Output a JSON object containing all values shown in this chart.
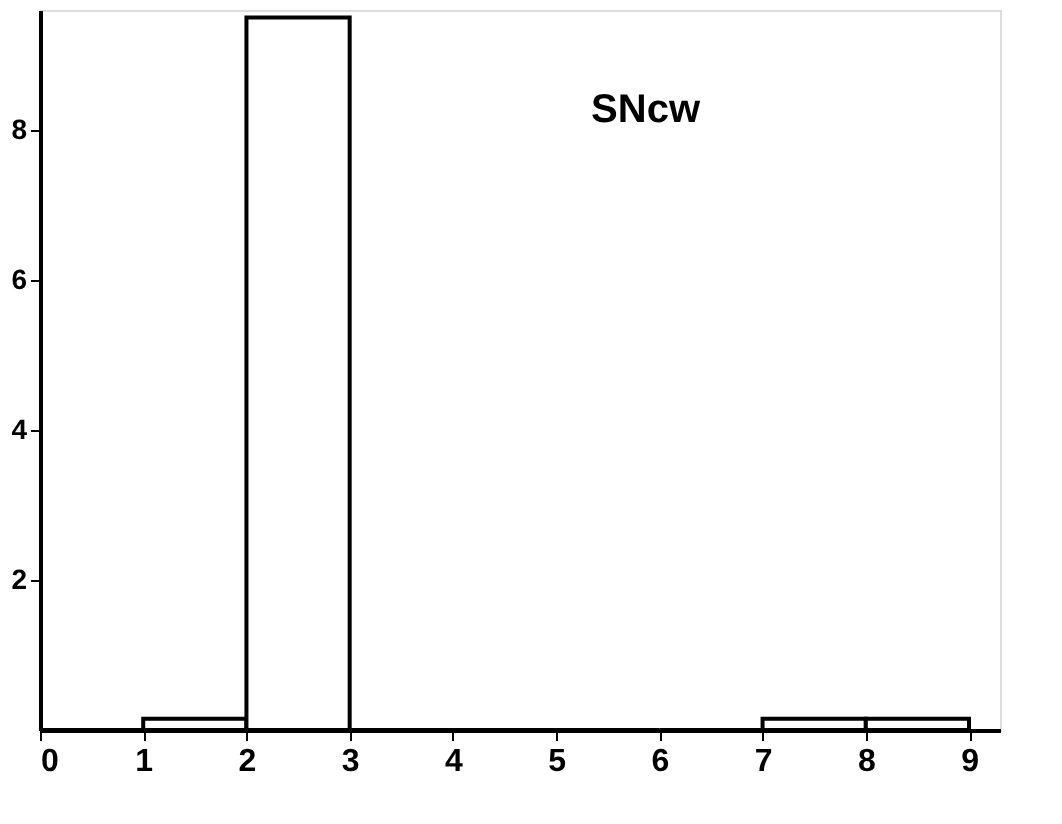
{
  "chart_data": {
    "type": "histogram",
    "title": "SNcw",
    "bins": [
      0,
      1,
      2,
      3,
      4,
      5,
      6,
      7,
      8,
      9
    ],
    "values": [
      0,
      0.15,
      9.5,
      0,
      0,
      0,
      0,
      0.15,
      0.15
    ],
    "color": "#000000",
    "xlim": [
      0,
      9.3
    ],
    "xticks": [
      0,
      1,
      2,
      3,
      4,
      5,
      6,
      7,
      8,
      9
    ],
    "ylim": [
      0,
      9.6
    ],
    "yticks": [
      2,
      4,
      6,
      8
    ],
    "grid": false
  }
}
